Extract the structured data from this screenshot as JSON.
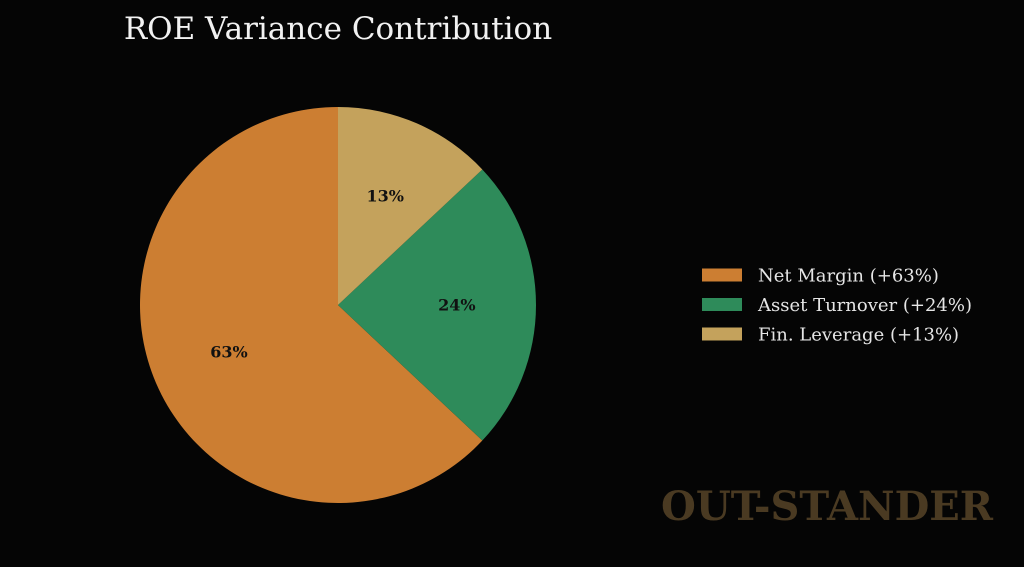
{
  "chart_data": {
    "type": "pie",
    "title": "ROE Variance Contribution",
    "categories": [
      "Net Margin",
      "Asset Turnover",
      "Fin. Leverage"
    ],
    "values": [
      63,
      24,
      13
    ],
    "slice_labels": [
      "63%",
      "24%",
      "13%"
    ],
    "legend": {
      "placement": "right",
      "entries": [
        "Net Margin (+63%)",
        "Asset Turnover (+24%)",
        "Fin. Leverage (+13%)"
      ]
    },
    "colors": [
      "#cc7e32",
      "#2e8b5a",
      "#c4a25c"
    ],
    "start_angle": "12 o'clock",
    "direction": "counter-clockwise"
  },
  "watermark": "OUT-STANDER",
  "theme": {
    "background": "#050505",
    "title_color": "#f2f2f2",
    "legend_text_color": "#e6e6e6",
    "watermark_color": "#4a3a22"
  }
}
